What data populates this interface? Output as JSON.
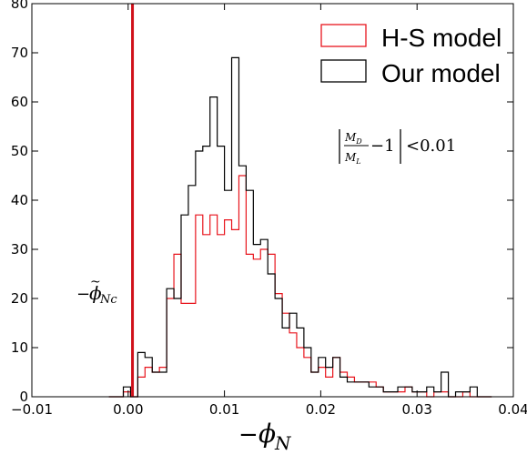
{
  "chart_data": {
    "type": "histogram",
    "x_ticks": [
      -0.01,
      0.0,
      0.01,
      0.02,
      0.03,
      0.04
    ],
    "x_tick_labels": [
      "−0.01",
      "0.00",
      "0.01",
      "0.02",
      "0.03",
      "0.04"
    ],
    "y_ticks": [
      0,
      10,
      20,
      30,
      40,
      50,
      60,
      70,
      80
    ],
    "y_tick_labels": [
      "0",
      "10",
      "20",
      "30",
      "40",
      "50",
      "60",
      "70",
      "80"
    ],
    "xlim": [
      -0.01,
      0.04
    ],
    "ylim": [
      0,
      80
    ],
    "grid": false,
    "legend_position": "top-right",
    "bin_edges": [
      -0.002,
      -0.00125,
      -0.0005,
      0.00025,
      0.001,
      0.00175,
      0.0025,
      0.00325,
      0.004,
      0.00475,
      0.0055,
      0.00625,
      0.007,
      0.00775,
      0.0085,
      0.00925,
      0.01,
      0.01075,
      0.0115,
      0.01225,
      0.013,
      0.01375,
      0.0145,
      0.01525,
      0.016,
      0.01675,
      0.0175,
      0.01825,
      0.019,
      0.01975,
      0.0205,
      0.02125,
      0.022,
      0.02275,
      0.0235,
      0.02425,
      0.025,
      0.02575,
      0.0265,
      0.02725,
      0.028,
      0.02875,
      0.0295,
      0.03025,
      0.031,
      0.03175,
      0.0325,
      0.03325,
      0.034,
      0.03475,
      0.0355,
      0.03625,
      0.037,
      0.03775
    ],
    "series": [
      {
        "name": "H-S model",
        "color": "#e8141c",
        "values": [
          0,
          0,
          1,
          0,
          4,
          6,
          5,
          6,
          20,
          29,
          19,
          19,
          37,
          33,
          37,
          33,
          36,
          34,
          45,
          29,
          28,
          30,
          29,
          21,
          17,
          13,
          10,
          8,
          5,
          6,
          4,
          8,
          5,
          4,
          3,
          3,
          3,
          2,
          1,
          1,
          1,
          2,
          1,
          1,
          0,
          1,
          1,
          0,
          0,
          1,
          0,
          0,
          0
        ]
      },
      {
        "name": "Our model",
        "color": "#000000",
        "values": [
          0,
          0,
          2,
          0,
          9,
          8,
          5,
          5,
          22,
          20,
          37,
          43,
          50,
          51,
          61,
          51,
          42,
          69,
          47,
          42,
          31,
          32,
          25,
          20,
          14,
          17,
          14,
          10,
          5,
          8,
          6,
          8,
          4,
          3,
          3,
          3,
          2,
          2,
          1,
          1,
          2,
          2,
          1,
          1,
          2,
          1,
          5,
          0,
          1,
          1,
          2,
          0,
          0
        ]
      }
    ],
    "threshold_line": {
      "x": 0.00045,
      "color": "#d0101a"
    },
    "annotation": "|M_D/M_L − 1| < 0.01",
    "xlabel": "−φ_N",
    "marker_label": "−φ̃_Nc"
  }
}
